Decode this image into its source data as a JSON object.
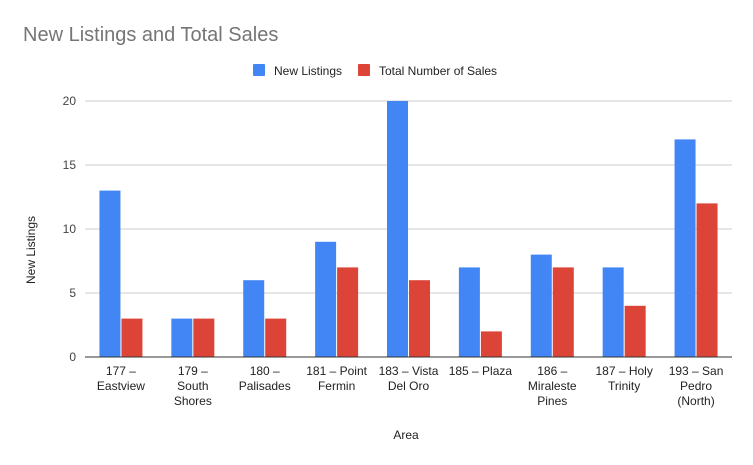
{
  "chart_data": {
    "type": "bar",
    "title": "New Listings and Total Sales",
    "xlabel": "Area",
    "ylabel": "New Listings",
    "ylim": [
      0,
      20
    ],
    "yticks": [
      0,
      5,
      10,
      15,
      20
    ],
    "grid": true,
    "legend_position": "top",
    "categories": [
      [
        "177 –",
        "Eastview"
      ],
      [
        "179 –",
        "South",
        "Shores"
      ],
      [
        "180 –",
        "Palisades"
      ],
      [
        "181 – Point",
        "Fermin"
      ],
      [
        "183 – Vista",
        "Del Oro"
      ],
      [
        "185 – Plaza"
      ],
      [
        "186 –",
        "Miraleste",
        "Pines"
      ],
      [
        "187 – Holy",
        "Trinity"
      ],
      [
        "193 – San",
        "Pedro",
        "(North)"
      ]
    ],
    "series": [
      {
        "name": "New Listings",
        "color": "#4285f4",
        "values": [
          13,
          3,
          6,
          9,
          20,
          7,
          8,
          7,
          17
        ]
      },
      {
        "name": "Total Number of Sales",
        "color": "#db4437",
        "values": [
          3,
          3,
          3,
          7,
          6,
          2,
          7,
          4,
          12
        ]
      }
    ]
  }
}
